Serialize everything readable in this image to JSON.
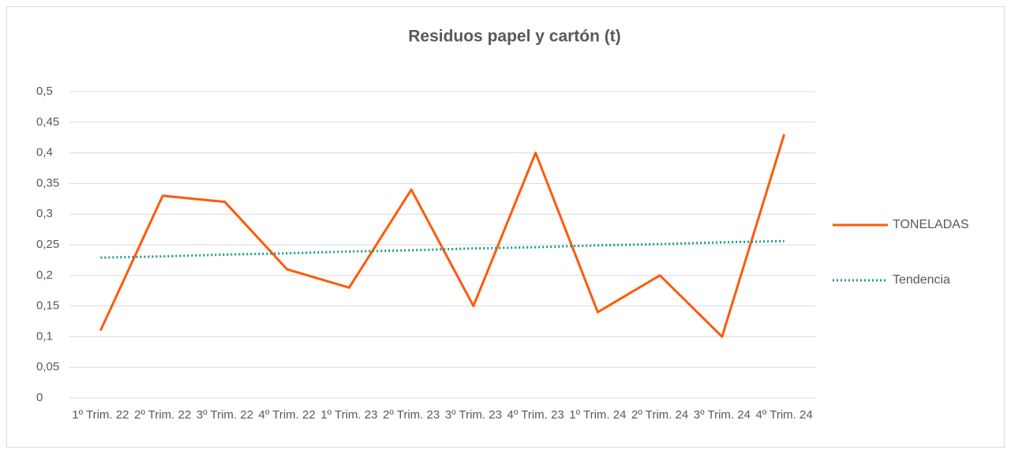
{
  "chart_data": {
    "type": "line",
    "title": "Residuos papel y cartón (t)",
    "categories": [
      "1º Trim. 22",
      "2º Trim. 22",
      "3º Trim. 22",
      "4º Trim. 22",
      "1º Trim. 23",
      "2º Trim. 23",
      "3º Trim. 23",
      "4º Trim. 23",
      "1º Trim. 24",
      "2º Trim. 24",
      "3º Trim. 24",
      "4º Trim. 24"
    ],
    "series": [
      {
        "name": "TONELADAS",
        "color": "#ff5a0a",
        "style": "solid",
        "values": [
          0.11,
          0.33,
          0.32,
          0.21,
          0.18,
          0.34,
          0.15,
          0.4,
          0.14,
          0.2,
          0.1,
          0.43
        ]
      },
      {
        "name": "Tendencia",
        "color": "#1a9a8c",
        "style": "dotted",
        "values": [
          0.229,
          0.231,
          0.234,
          0.236,
          0.239,
          0.241,
          0.244,
          0.246,
          0.249,
          0.251,
          0.254,
          0.256
        ]
      }
    ],
    "ylim": [
      0,
      0.5
    ],
    "yticks": [
      0,
      {
        "value": 0.05,
        "label": "0,05"
      },
      {
        "value": 0.1,
        "label": "0,1"
      },
      {
        "value": 0.15,
        "label": "0,15"
      },
      {
        "value": 0.2,
        "label": "0,2"
      },
      {
        "value": 0.25,
        "label": "0,25"
      },
      {
        "value": 0.3,
        "label": "0,3"
      },
      {
        "value": 0.35,
        "label": "0,35"
      },
      {
        "value": 0.4,
        "label": "0,4"
      },
      {
        "value": 0.45,
        "label": "0,45"
      },
      {
        "value": 0.5,
        "label": "0,5"
      }
    ],
    "grid": true,
    "legend": "right"
  }
}
